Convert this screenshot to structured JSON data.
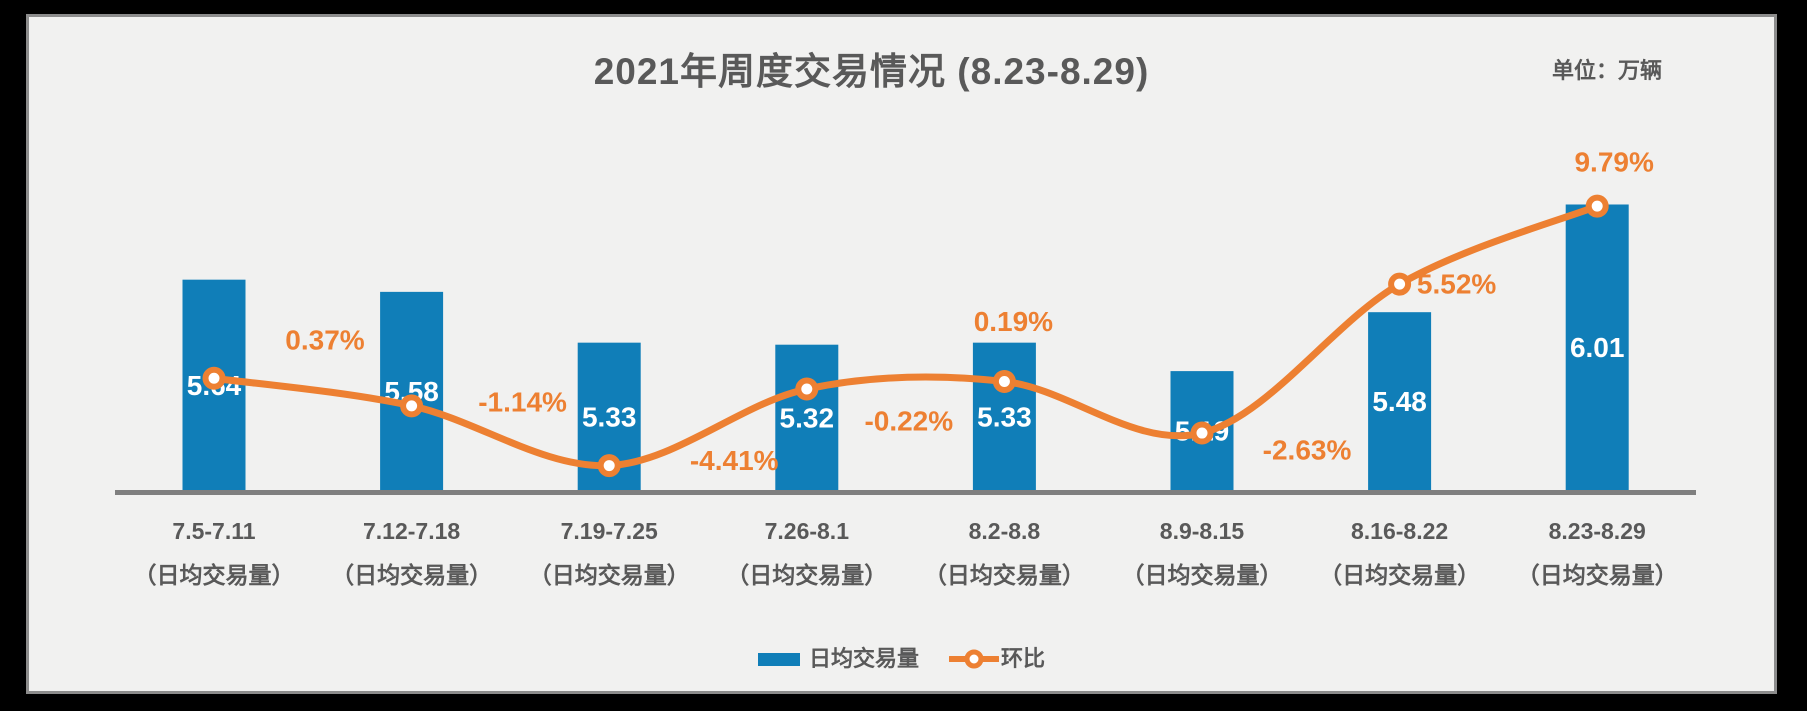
{
  "title": "2021年周度交易情况 (8.23-8.29)",
  "unit_label": "单位：万辆",
  "legend": {
    "bar_label": "日均交易量",
    "line_label": "环比"
  },
  "colors": {
    "bar_blue": "#107EB8",
    "line_orange": "#ED8032",
    "text_gray": "#595959",
    "axis_gray": "#7F7F7F",
    "bar_value_white": "#FFFFFF",
    "slide_bg": "#F1F1F0",
    "frame_gray": "#8C8C8C",
    "surround_black": "#000000"
  },
  "chart_data": {
    "type": "bar+line",
    "title": "2021年周度交易情况 (8.23-8.29)",
    "unit": "万辆",
    "categories": [
      "7.5-7.11",
      "7.12-7.18",
      "7.19-7.25",
      "7.26-8.1",
      "8.2-8.8",
      "8.9-8.15",
      "8.16-8.22",
      "8.23-8.29"
    ],
    "category_sub_label": "（日均交易量）",
    "series": [
      {
        "name": "日均交易量",
        "type": "bar",
        "values": [
          5.64,
          5.58,
          5.33,
          5.32,
          5.33,
          5.19,
          5.48,
          6.01
        ],
        "labels": [
          "5.64",
          "5.58",
          "5.33",
          "5.32",
          "5.33",
          "5.19",
          "5.48",
          "6.01"
        ]
      },
      {
        "name": "环比",
        "type": "line",
        "unit": "%",
        "values": [
          0.37,
          -1.14,
          -4.41,
          -0.22,
          0.19,
          -2.63,
          5.52,
          9.79
        ],
        "labels": [
          "0.37%",
          "-1.14%",
          "-4.41%",
          "-0.22%",
          "0.19%",
          "-2.63%",
          "5.52%",
          "9.79%"
        ]
      }
    ],
    "bar_axis_implied_base": 4.6,
    "value_axis_visible": false,
    "gridlines": false,
    "legend_position": "bottom"
  }
}
